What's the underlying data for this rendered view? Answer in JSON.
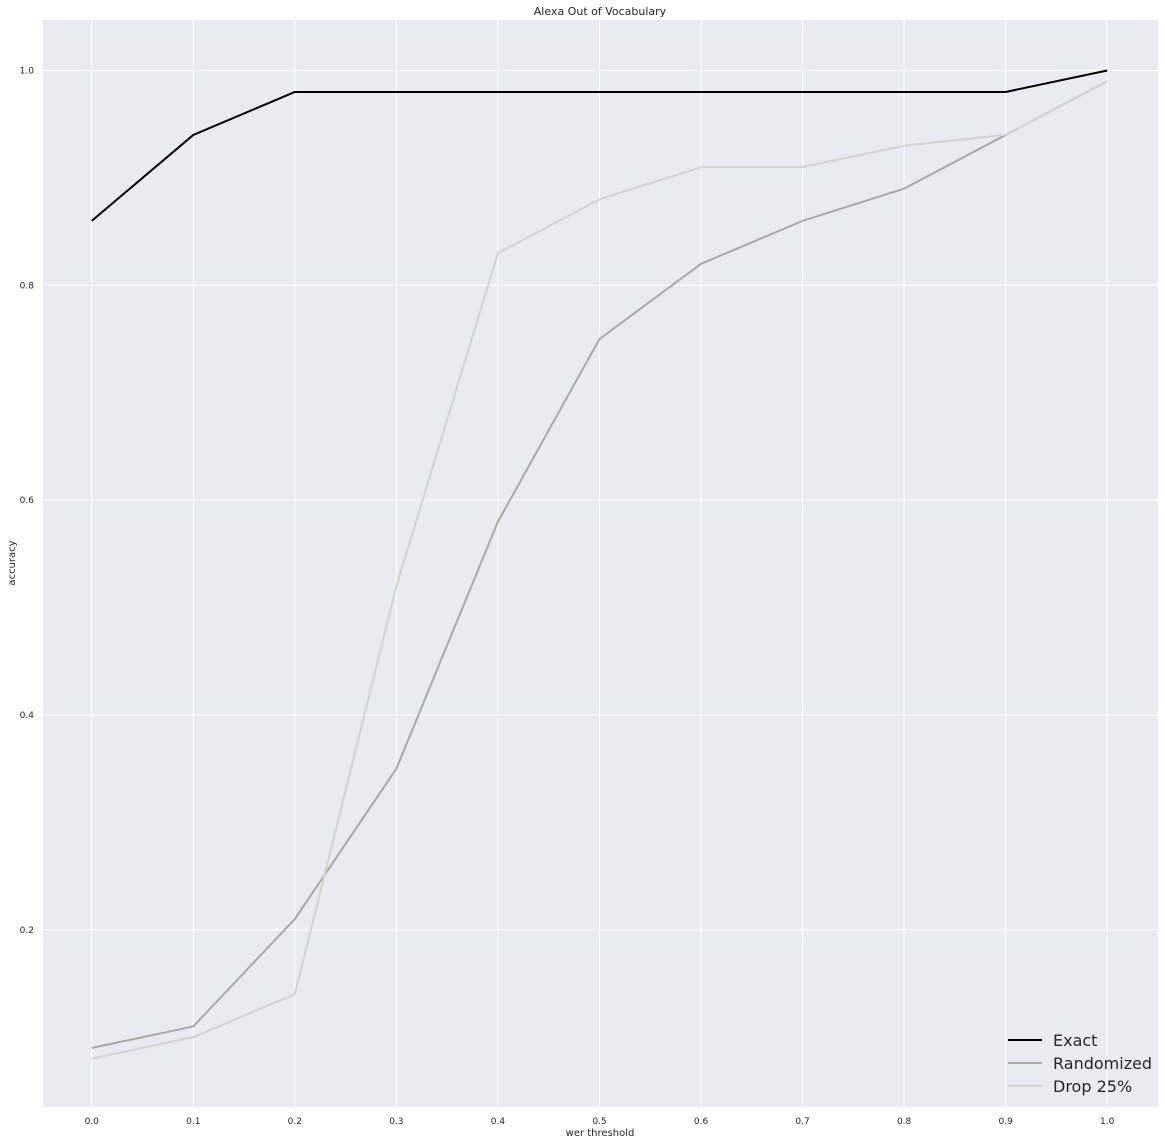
{
  "chart_data": {
    "type": "line",
    "title": "Alexa Out of Vocabulary",
    "xlabel": "wer threshold",
    "ylabel": "accuracy",
    "x": [
      0.0,
      0.1,
      0.2,
      0.3,
      0.4,
      0.5,
      0.6,
      0.7,
      0.8,
      0.9,
      1.0
    ],
    "xticks": [
      "0.0",
      "0.1",
      "0.2",
      "0.3",
      "0.4",
      "0.5",
      "0.6",
      "0.7",
      "0.8",
      "0.9",
      "1.0"
    ],
    "yticks": [
      "0.2",
      "0.4",
      "0.6",
      "0.8",
      "1.0"
    ],
    "xlim": [
      -0.048,
      1.05
    ],
    "ylim": [
      0.035,
      1.047
    ],
    "grid": true,
    "background": "#eaeaf2",
    "legend_position": "lower-right",
    "series": [
      {
        "name": "Exact",
        "color": "#000000",
        "values": [
          0.86,
          0.94,
          0.98,
          0.98,
          0.98,
          0.98,
          0.98,
          0.98,
          0.98,
          0.98,
          1.0
        ]
      },
      {
        "name": "Randomized",
        "color": "#a9a9a9",
        "values": [
          0.09,
          0.11,
          0.21,
          0.35,
          0.58,
          0.75,
          0.82,
          0.86,
          0.89,
          0.94,
          0.99
        ]
      },
      {
        "name": "Drop 25%",
        "color": "#d3d3d3",
        "values": [
          0.08,
          0.1,
          0.14,
          0.52,
          0.83,
          0.88,
          0.91,
          0.91,
          0.93,
          0.94,
          0.99
        ]
      }
    ]
  }
}
